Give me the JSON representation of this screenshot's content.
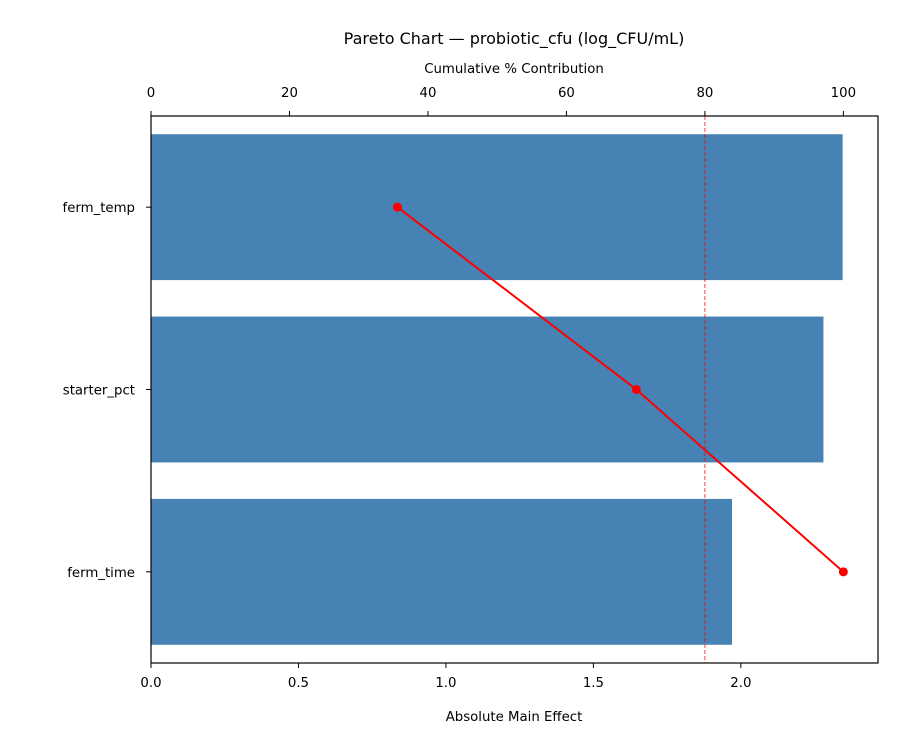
{
  "chart_data": {
    "type": "bar",
    "orientation": "horizontal",
    "title": "Pareto Chart — probiotic_cfu (log_CFU/mL)",
    "xlabel": "Absolute Main Effect",
    "secondary_xlabel": "Cumulative % Contribution",
    "categories": [
      "ferm_temp",
      "starter_pct",
      "ferm_time"
    ],
    "values": [
      2.345,
      2.28,
      1.97
    ],
    "bar_color": "#4682b4",
    "xlim": [
      0,
      2.465
    ],
    "x_ticks": [
      "0.0",
      "0.5",
      "1.0",
      "1.5",
      "2.0"
    ],
    "x_tick_values": [
      0,
      0.5,
      1.0,
      1.5,
      2.0
    ],
    "cumulative_series": {
      "values": [
        35.6,
        70.1,
        100.0
      ],
      "color": "#ff0000"
    },
    "secondary_xlim": [
      0,
      105
    ],
    "secondary_ticks": [
      "0",
      "20",
      "40",
      "60",
      "80",
      "100"
    ],
    "secondary_tick_values": [
      0,
      20,
      40,
      60,
      80,
      100
    ],
    "threshold": {
      "value": 80,
      "color": "#ff0000",
      "style": "dashed"
    },
    "grid": false
  }
}
